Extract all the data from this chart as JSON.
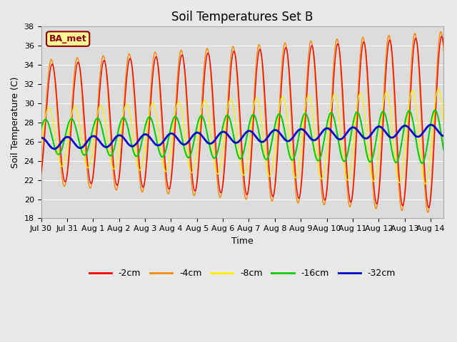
{
  "title": "Soil Temperatures Set B",
  "xlabel": "Time",
  "ylabel": "Soil Temperature (C)",
  "ylim": [
    18,
    38
  ],
  "yticks": [
    18,
    20,
    22,
    24,
    26,
    28,
    30,
    32,
    34,
    36,
    38
  ],
  "figsize": [
    6.4,
    4.8
  ],
  "dpi": 100,
  "background_color": "#e8e8e8",
  "plot_bg_color": "#dcdcdc",
  "grid_color": "#ffffff",
  "annotation_text": "BA_met",
  "annotation_bg": "#ffff99",
  "annotation_border": "#8b0000",
  "annotation_text_color": "#8b0000",
  "series": {
    "-2cm": {
      "color": "#ff0000",
      "lw": 1.0
    },
    "-4cm": {
      "color": "#ff8800",
      "lw": 1.0
    },
    "-8cm": {
      "color": "#ffee00",
      "lw": 1.0
    },
    "-16cm": {
      "color": "#00cc00",
      "lw": 1.5
    },
    "-32cm": {
      "color": "#0000cc",
      "lw": 2.0
    }
  },
  "tick_labels": [
    "Jul 30",
    "Jul 31",
    "Aug 1",
    "Aug 2",
    "Aug 3",
    "Aug 4",
    "Aug 5",
    "Aug 6",
    "Aug 7",
    "Aug 8",
    "Aug 9",
    "Aug 10",
    "Aug 11",
    "Aug 12",
    "Aug 13",
    "Aug 14"
  ],
  "tick_positions": [
    0,
    1,
    2,
    3,
    4,
    5,
    6,
    7,
    8,
    9,
    10,
    11,
    12,
    13,
    14,
    15
  ],
  "xlim": [
    0,
    15.5
  ]
}
